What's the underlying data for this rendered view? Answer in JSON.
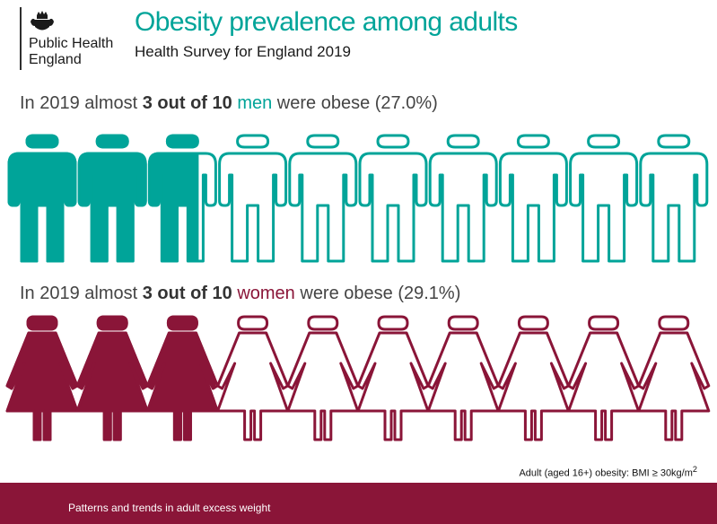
{
  "logo": {
    "org_name": "Public Health\nEngland"
  },
  "header": {
    "title": "Obesity prevalence among adults",
    "subtitle": "Health Survey for England 2019"
  },
  "men_statement": {
    "prefix": "In 2019 almost ",
    "highlight": "3 out of 10",
    "group": "men",
    "suffix": " were obese (27.0%)"
  },
  "women_statement": {
    "prefix": "In 2019 almost ",
    "highlight": "3 out of 10",
    "group": "women",
    "suffix": " were obese (29.1%)"
  },
  "footnote": {
    "text_before_sup": "Adult (aged 16+) obesity: BMI ≥ 30kg/m",
    "sup": "2"
  },
  "footer": {
    "text": "Patterns and trends in adult excess weight"
  },
  "colors": {
    "men": "#00a499",
    "women": "#8a1538"
  },
  "chart_data": {
    "type": "pictogram",
    "icons_per_row": 10,
    "series": [
      {
        "name": "men",
        "value_percent": 27.0,
        "icon": "man-icon"
      },
      {
        "name": "women",
        "value_percent": 29.1,
        "icon": "woman-icon"
      }
    ]
  }
}
